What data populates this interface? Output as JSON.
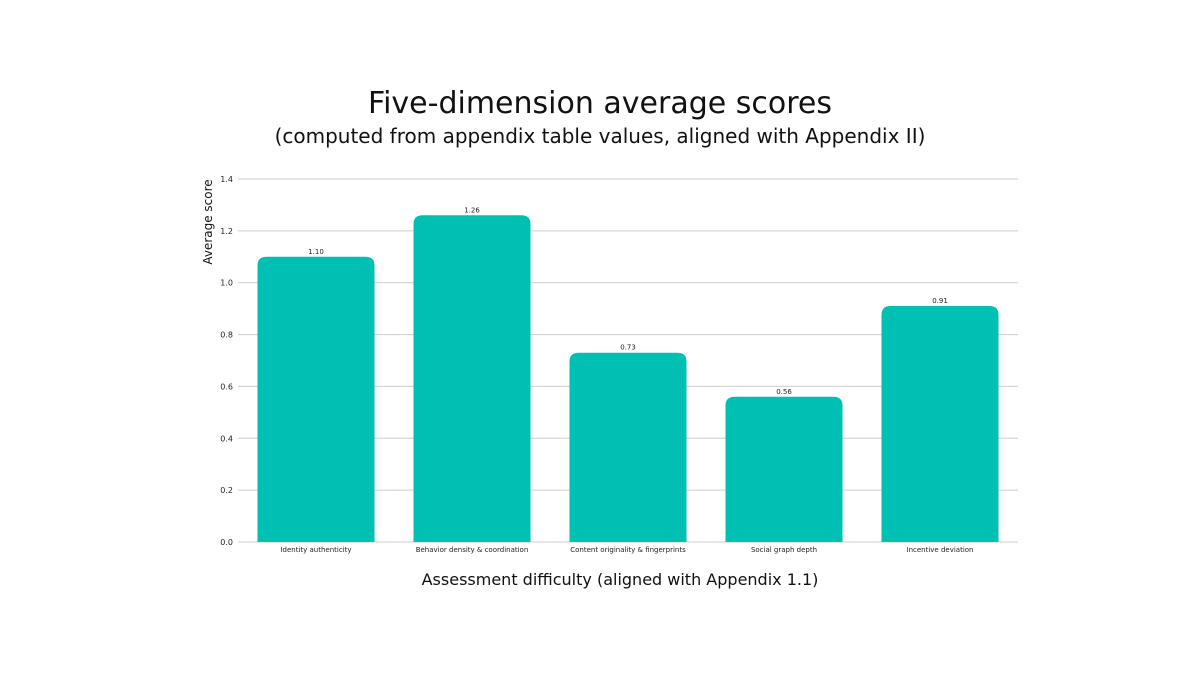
{
  "chart_data": {
    "type": "bar",
    "title": "Five-dimension average scores",
    "subtitle": "(computed from appendix table values, aligned with Appendix II)",
    "xlabel": "Assessment difficulty (aligned with Appendix 1.1)",
    "ylabel": "Average score",
    "categories": [
      "Identity authenticity",
      "Behavior density & coordination",
      "Content originality & fingerprints",
      "Social graph depth",
      "Incentive deviation"
    ],
    "values": [
      1.1,
      1.26,
      0.73,
      0.56,
      0.91
    ],
    "value_labels": [
      "1.10",
      "1.26",
      "0.73",
      "0.56",
      "0.91"
    ],
    "ylim": [
      0,
      1.4
    ],
    "yticks": [
      0.0,
      0.2,
      0.4,
      0.6,
      0.8,
      1.0,
      1.2,
      1.4
    ],
    "ytick_labels": [
      "0.0",
      "0.2",
      "0.4",
      "0.6",
      "0.8",
      "1.0",
      "1.2",
      "1.4"
    ],
    "grid": true,
    "legend": "none",
    "bar_color": "#00BFB3",
    "grid_color": "#CCCCCC"
  }
}
